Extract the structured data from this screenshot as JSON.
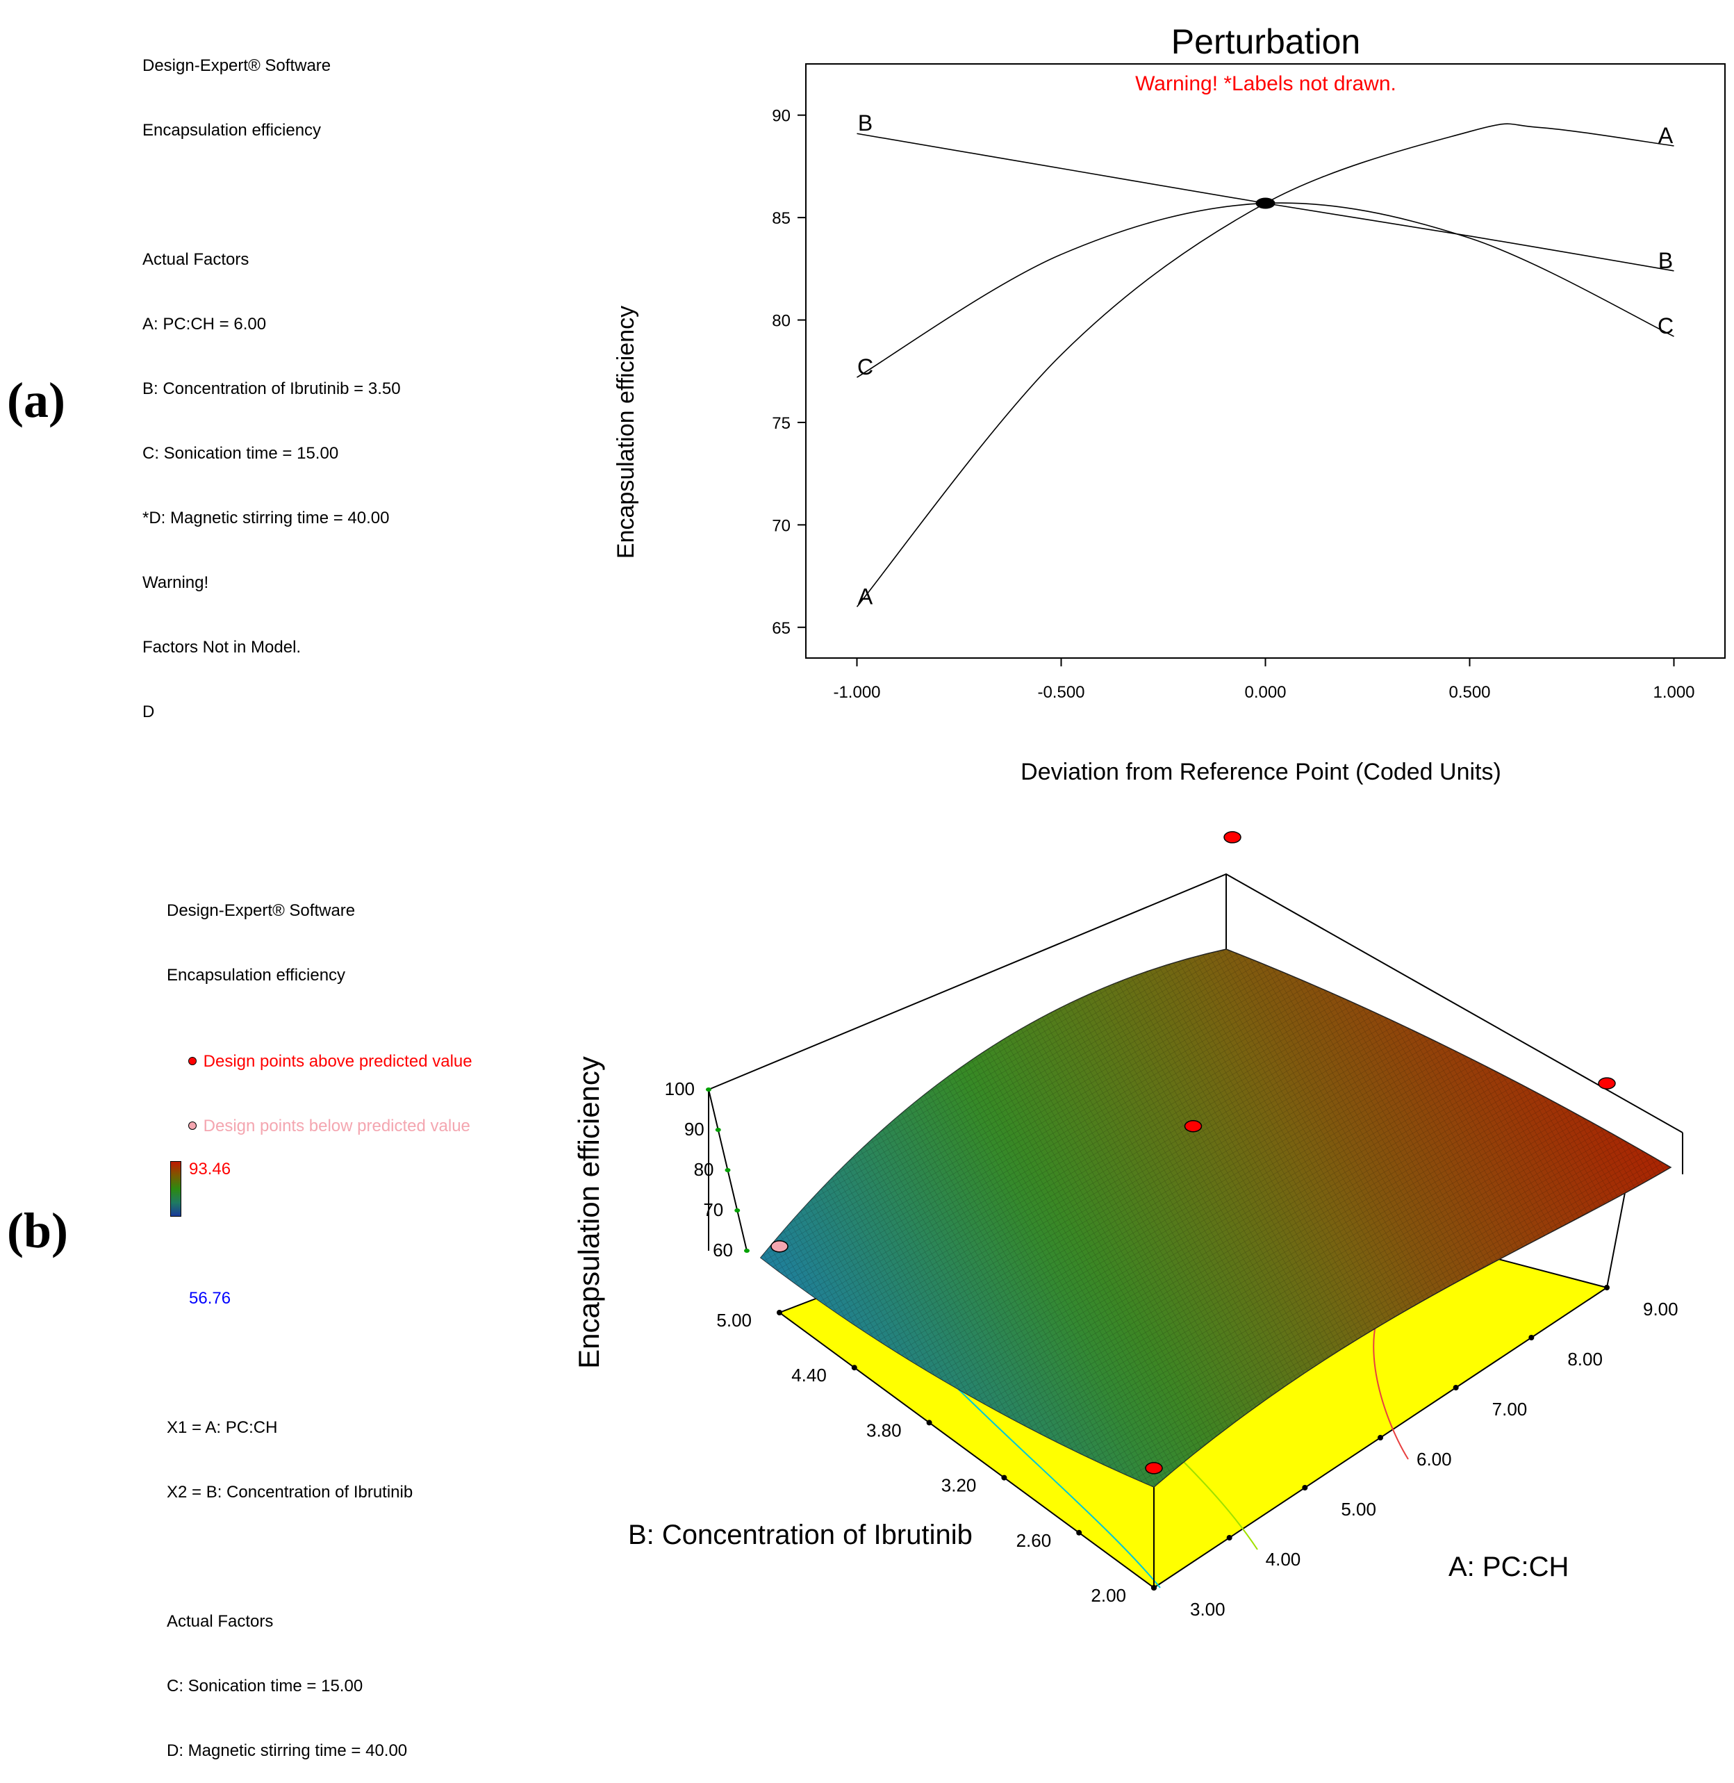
{
  "panel_a": {
    "label": "(a)",
    "info": {
      "software": "Design-Expert® Software",
      "response": "Encapsulation efficiency",
      "factors_heading": "Actual Factors",
      "lines": [
        "A: PC:CH = 6.00",
        "B: Concentration of Ibrutinib = 3.50",
        "C: Sonication time = 15.00",
        "*D: Magnetic stirring time = 40.00",
        "Warning!",
        "Factors Not in Model.",
        "D"
      ]
    }
  },
  "panel_b": {
    "label": "(b)",
    "info": {
      "software": "Design-Expert® Software",
      "response": "Encapsulation efficiency",
      "legend_above": "Design points above predicted value",
      "legend_below": "Design points below predicted value",
      "color_max": "93.46",
      "color_min": "56.76",
      "x1": "X1 = A: PC:CH",
      "x2": "X2 = B: Concentration of Ibrutinib",
      "factors_heading": "Actual Factors",
      "lines": [
        "C: Sonication time = 15.00",
        "D: Magnetic stirring time = 40.00"
      ]
    }
  },
  "colors": {
    "above": "#ff0000",
    "below": "#f4a6b0",
    "floor": "#ffff00",
    "surface_low": "#1e7fa0",
    "surface_mid": "#4a8a10",
    "surface_high": "#b21a00"
  },
  "chart_data": [
    {
      "type": "line",
      "title": "Perturbation",
      "warning": "Warning!  *Labels not drawn.",
      "xlabel": "Deviation from Reference Point (Coded Units)",
      "ylabel": "Encapsulation efficiency",
      "xlim": [
        -1.125,
        1.125
      ],
      "ylim": [
        63.5,
        92.5
      ],
      "xticks": [
        "-1.000",
        "-0.500",
        "0.000",
        "0.500",
        "1.000"
      ],
      "yticks": [
        "65",
        "70",
        "75",
        "80",
        "85",
        "90"
      ],
      "reference_point": {
        "x": 0.0,
        "y": 85.7
      },
      "series": [
        {
          "name": "A",
          "start_label": "A",
          "end_label": "A",
          "x": [
            -1.0,
            -0.5,
            0.0,
            0.5,
            0.67,
            1.0
          ],
          "y": [
            66.0,
            78.3,
            85.7,
            89.2,
            89.4,
            88.5
          ]
        },
        {
          "name": "B",
          "start_label": "B",
          "end_label": "B",
          "x": [
            -1.0,
            -0.5,
            0.0,
            0.5,
            1.0
          ],
          "y": [
            89.1,
            87.4,
            85.7,
            84.1,
            82.4
          ]
        },
        {
          "name": "C",
          "start_label": "C",
          "end_label": "C",
          "x": [
            -1.0,
            -0.5,
            0.0,
            0.5,
            1.0
          ],
          "y": [
            77.2,
            83.2,
            85.7,
            84.0,
            79.2
          ]
        }
      ]
    },
    {
      "type": "surface",
      "zlabel": "Encapsulation efficiency",
      "xlabel": "A: PC:CH",
      "ylabel": "B: Concentration of Ibrutinib",
      "x_ticks": [
        "3.00",
        "4.00",
        "5.00",
        "6.00",
        "7.00",
        "8.00",
        "9.00"
      ],
      "y_ticks": [
        "2.00",
        "2.60",
        "3.20",
        "3.80",
        "4.40",
        "5.00"
      ],
      "z_ticks": [
        "60",
        "70",
        "80",
        "90",
        "100"
      ],
      "x_range": [
        3.0,
        9.0
      ],
      "y_range": [
        2.0,
        5.0
      ],
      "z_range": [
        60,
        100
      ],
      "surface_corners": [
        {
          "A": 3.0,
          "B": 2.0,
          "z": 73.0
        },
        {
          "A": 3.0,
          "B": 5.0,
          "z": 60.5
        },
        {
          "A": 9.0,
          "B": 2.0,
          "z": 92.8
        },
        {
          "A": 9.0,
          "B": 5.0,
          "z": 86.0
        }
      ],
      "design_points": [
        {
          "A": 3.0,
          "B": 5.0,
          "z": 60.5,
          "status": "below"
        },
        {
          "A": 3.0,
          "B": 2.0,
          "z": 73.0,
          "status": "above"
        },
        {
          "A": 9.0,
          "B": 2.0,
          "z": 92.8,
          "status": "above"
        },
        {
          "A": 9.0,
          "B": 5.0,
          "z": 86.0,
          "status": "above"
        },
        {
          "A": 6.0,
          "B": 3.5,
          "z": 85.7,
          "status": "above"
        }
      ]
    }
  ]
}
